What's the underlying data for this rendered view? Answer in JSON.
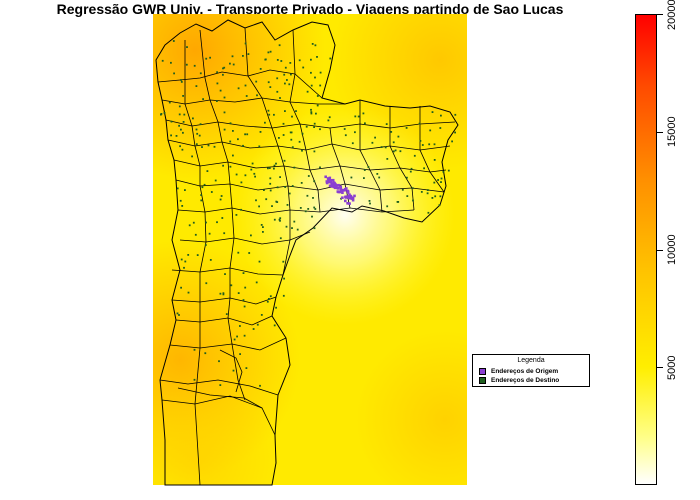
{
  "title": "Regressão GWR Univ. - Transporte Privado - Viagens partindo de Sao Lucas",
  "legend": {
    "title": "Legenda",
    "items": [
      {
        "label": "Endereços de Origem",
        "color": "#8a3fd1"
      },
      {
        "label": "Endereços de Destino",
        "color": "#1f5f1f"
      }
    ]
  },
  "colorbar": {
    "min": 0,
    "max": 20000,
    "ticks": [
      5000,
      10000,
      15000,
      20000
    ],
    "tick_labels": [
      "5000",
      "10000",
      "15000",
      "20000"
    ],
    "colors": [
      "#ffffff",
      "#ffff88",
      "#ffee00",
      "#ffc400",
      "#ff8f00",
      "#ff4a00",
      "#ff0000"
    ]
  },
  "map": {
    "background_colors": [
      "#ffff00",
      "#ffd000",
      "#ffa600"
    ],
    "boundary_color": "#000000",
    "origin_color": "#8a3fd1",
    "destination_color": "#1f5f1f"
  }
}
